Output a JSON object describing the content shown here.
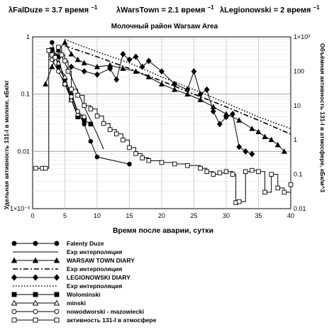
{
  "header": {
    "lambdas": [
      {
        "text": "λFalDuze = 3.7 время",
        "sup": "−1"
      },
      {
        "text": "λWarsTown = 2.1 время",
        "sup": "−1"
      },
      {
        "text": "λLegionowski = 2 время",
        "sup": "−1"
      }
    ]
  },
  "chart_data": {
    "type": "line",
    "title": "Молочный район Warsaw Area",
    "xlabel": "Время после аварии, сутки",
    "ylabel_left": "Удельная активность 131-I в молоке, кБк/кг",
    "ylabel_right": "Объёмная активность 131-I в атмосфере, кБк/м^3",
    "xlim": [
      0,
      40
    ],
    "ylim_left": [
      0.001,
      1
    ],
    "ylim_right": [
      0.01,
      1000
    ],
    "yscale": "log",
    "x_ticks": [
      "0",
      "5",
      "10",
      "15",
      "20",
      "25",
      "30",
      "35",
      "40"
    ],
    "y_left_ticks": [
      "1×10⁻³",
      "0.01",
      "0.1",
      "1"
    ],
    "y_right_ticks": [
      "0.01",
      "0.1",
      "1",
      "10",
      "100",
      "1×10³"
    ],
    "grid": true,
    "legend_position": "bottom-left",
    "series": [
      {
        "name": "Falenty Duze",
        "axis": "left",
        "marker": "circle-filled",
        "line": "solid",
        "x": [
          3,
          4,
          5,
          6,
          7,
          8,
          9,
          10,
          15
        ],
        "y": [
          0.8,
          0.3,
          0.18,
          0.1,
          0.05,
          0.03,
          0.015,
          0.008,
          0.006
        ]
      },
      {
        "name": "Exp интерполяция",
        "axis": "left",
        "marker": "none",
        "line": "solid",
        "x": [
          4,
          5,
          6,
          7,
          8,
          9,
          10,
          11
        ],
        "y": [
          0.6,
          0.35,
          0.2,
          0.11,
          0.06,
          0.035,
          0.02,
          0.011
        ]
      },
      {
        "name": "WARSAW TOWN DIARY",
        "axis": "left",
        "marker": "triangle-filled",
        "line": "solid",
        "x": [
          2,
          3,
          4,
          5,
          6,
          7,
          8,
          10,
          12,
          14,
          16,
          18,
          20,
          22,
          24,
          26,
          28,
          30,
          32,
          34,
          35,
          36,
          37,
          38,
          39
        ],
        "y": [
          0.15,
          0.3,
          0.6,
          0.8,
          0.5,
          0.4,
          0.35,
          0.3,
          0.32,
          0.28,
          0.25,
          0.2,
          0.15,
          0.12,
          0.1,
          0.08,
          0.06,
          0.045,
          0.035,
          0.025,
          0.022,
          0.018,
          0.016,
          0.013,
          0.01
        ]
      },
      {
        "name": "Exp интерполяция",
        "axis": "left",
        "marker": "none",
        "line": "dash-dot",
        "x": [
          5,
          10,
          15,
          20,
          25,
          30,
          35,
          40
        ],
        "y": [
          0.7,
          0.45,
          0.28,
          0.17,
          0.1,
          0.06,
          0.035,
          0.02
        ]
      },
      {
        "name": "LEGIONOWSKI DIARY",
        "axis": "left",
        "marker": "diamond-filled",
        "line": "solid",
        "x": [
          6,
          8,
          10,
          12,
          13,
          14,
          15,
          16,
          17,
          18,
          20,
          22,
          24,
          25,
          26,
          27,
          28,
          29,
          30,
          31,
          32,
          33,
          34
        ],
        "y": [
          0.3,
          0.25,
          0.22,
          0.28,
          0.18,
          0.5,
          0.4,
          0.45,
          0.3,
          0.38,
          0.25,
          0.15,
          0.12,
          0.25,
          0.1,
          0.12,
          0.05,
          0.03,
          0.04,
          0.045,
          0.012,
          0.01,
          0.009
        ]
      },
      {
        "name": "Exp интерполяция",
        "axis": "left",
        "marker": "none",
        "line": "dotted",
        "x": [
          5,
          10,
          15,
          20,
          25,
          30,
          35,
          40
        ],
        "y": [
          0.9,
          0.55,
          0.35,
          0.2,
          0.12,
          0.07,
          0.04,
          0.025
        ]
      },
      {
        "name": "Wolominski",
        "axis": "left",
        "marker": "square-filled",
        "line": "solid",
        "x": [
          3,
          4,
          5,
          6,
          7,
          8,
          9
        ],
        "y": [
          0.6,
          0.45,
          0.15,
          0.08,
          0.04,
          0.035,
          0.03
        ]
      },
      {
        "name": "minski",
        "axis": "left",
        "marker": "triangle-open",
        "line": "solid",
        "x": [
          3,
          4,
          5,
          6,
          7,
          8
        ],
        "y": [
          0.5,
          0.35,
          0.2,
          0.08,
          0.045,
          0.04
        ]
      },
      {
        "name": "nowodworski - mazowiecki",
        "axis": "left",
        "marker": "circle-open",
        "line": "solid",
        "x": [
          3,
          4,
          5,
          6,
          7,
          8
        ],
        "y": [
          0.4,
          0.25,
          0.15,
          0.09,
          0.05,
          0.04
        ]
      },
      {
        "name": "активность 131-I в атмосфере",
        "axis": "right",
        "marker": "square-open",
        "line": "solid",
        "x": [
          0.5,
          1.5,
          2,
          2.5,
          3,
          3.5,
          4,
          4.5,
          5,
          5.5,
          6,
          7,
          8,
          9,
          10,
          11,
          12,
          13,
          14,
          15,
          16,
          17,
          18,
          20,
          22,
          24,
          26,
          27,
          28,
          29,
          30,
          31,
          31.5,
          32,
          33,
          34,
          35,
          36,
          37,
          38,
          39,
          40
        ],
        "y": [
          0.15,
          0.15,
          0.15,
          400,
          300,
          250,
          500,
          300,
          200,
          100,
          30,
          20,
          10,
          8,
          5,
          3,
          2,
          1.5,
          1,
          0.6,
          0.4,
          0.3,
          0.25,
          0.22,
          0.2,
          0.18,
          0.15,
          0.12,
          0.1,
          0.11,
          0.12,
          0.1,
          0.015,
          0.016,
          0.12,
          0.13,
          0.12,
          0.03,
          0.1,
          0.04,
          0.03,
          0.05
        ]
      }
    ]
  }
}
